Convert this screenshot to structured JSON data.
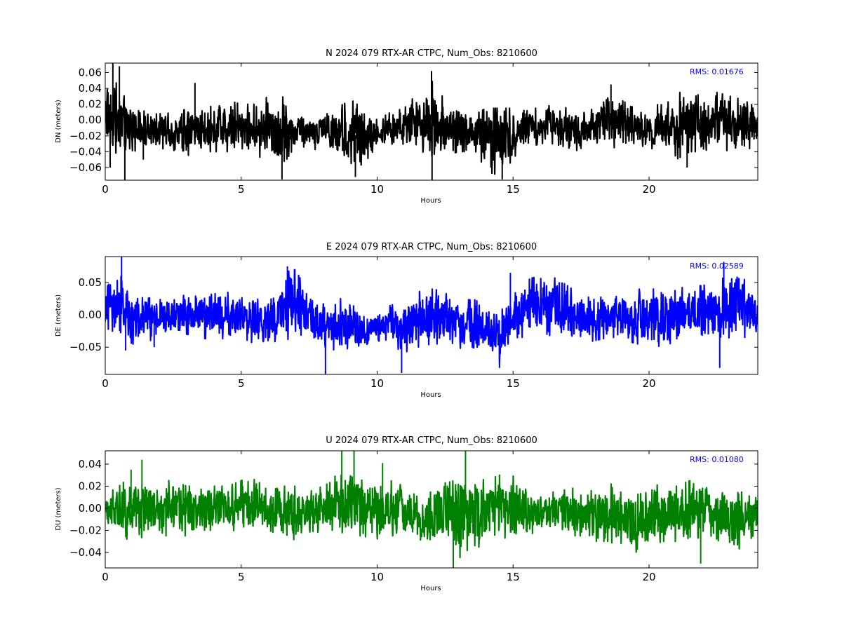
{
  "chart_data": [
    {
      "type": "line",
      "title": "N 2024 079 RTX-AR  CTPC, Num_Obs: 8210600",
      "xlabel": "Hours",
      "ylabel": "DN (meters)",
      "xlim": [
        0,
        24
      ],
      "ylim": [
        -0.076,
        0.072
      ],
      "x_ticks": [
        0,
        5,
        10,
        15,
        20
      ],
      "x_tick_labels": [
        "0",
        "5",
        "10",
        "15",
        "20"
      ],
      "y_ticks": [
        -0.06,
        -0.04,
        -0.02,
        0.0,
        0.02,
        0.04,
        0.06
      ],
      "y_tick_labels": [
        "−0.06",
        "−0.04",
        "−0.02",
        "0.00",
        "0.02",
        "0.04",
        "0.06"
      ],
      "annotation": "RMS:  0.01676",
      "annotation_color": "#0000ff",
      "series_color": "#000000",
      "grid": false,
      "envelope": {
        "hours": [
          0,
          0.5,
          1,
          1.5,
          2,
          2.5,
          3,
          3.5,
          4,
          4.5,
          5,
          5.5,
          6,
          6.5,
          7,
          7.5,
          8,
          8.5,
          9,
          9.5,
          10,
          10.5,
          11,
          11.5,
          12,
          12.5,
          13,
          13.5,
          14,
          14.5,
          15,
          15.5,
          16,
          16.5,
          17,
          17.5,
          18,
          18.5,
          19,
          19.5,
          20,
          20.5,
          21,
          21.5,
          22,
          22.5,
          23,
          23.5,
          24
        ],
        "upper": [
          0.055,
          0.045,
          0.02,
          0.01,
          0.015,
          0.005,
          0.015,
          0.015,
          0.02,
          0.025,
          0.02,
          0.02,
          0.03,
          0.03,
          0.015,
          0.0,
          0.015,
          0.015,
          0.025,
          0.02,
          0.0,
          0.01,
          0.015,
          0.035,
          0.05,
          0.025,
          0.015,
          0.005,
          0.015,
          0.015,
          0.015,
          0.015,
          0.015,
          0.02,
          0.015,
          0.015,
          0.015,
          0.04,
          0.025,
          0.015,
          0.01,
          0.025,
          0.035,
          0.035,
          0.03,
          0.035,
          0.03,
          0.025,
          0.015
        ],
        "lower": [
          -0.03,
          -0.045,
          -0.04,
          -0.035,
          -0.035,
          -0.04,
          -0.045,
          -0.04,
          -0.04,
          -0.04,
          -0.04,
          -0.045,
          -0.05,
          -0.06,
          -0.04,
          -0.035,
          -0.04,
          -0.045,
          -0.065,
          -0.055,
          -0.035,
          -0.03,
          -0.035,
          -0.035,
          -0.05,
          -0.045,
          -0.04,
          -0.04,
          -0.065,
          -0.07,
          -0.05,
          -0.035,
          -0.03,
          -0.03,
          -0.035,
          -0.04,
          -0.035,
          -0.035,
          -0.035,
          -0.035,
          -0.035,
          -0.04,
          -0.05,
          -0.04,
          -0.04,
          -0.035,
          -0.04,
          -0.04,
          -0.03
        ]
      },
      "spikes": [
        [
          0.18,
          -0.06
        ],
        [
          0.28,
          0.072
        ],
        [
          0.52,
          0.068
        ],
        [
          0.72,
          -0.076
        ],
        [
          1.4,
          -0.05
        ],
        [
          3.3,
          0.047
        ],
        [
          6.5,
          -0.075
        ],
        [
          9.2,
          -0.072
        ],
        [
          12.0,
          0.062
        ],
        [
          12.02,
          -0.076
        ],
        [
          14.6,
          -0.075
        ],
        [
          18.6,
          0.045
        ],
        [
          21.4,
          -0.06
        ]
      ]
    },
    {
      "type": "line",
      "title": "E 2024 079 RTX-AR  CTPC, Num_Obs: 8210600",
      "xlabel": "Hours",
      "ylabel": "DE (meters)",
      "xlim": [
        0,
        24
      ],
      "ylim": [
        -0.092,
        0.09
      ],
      "x_ticks": [
        0,
        5,
        10,
        15,
        20
      ],
      "x_tick_labels": [
        "0",
        "5",
        "10",
        "15",
        "20"
      ],
      "y_ticks": [
        -0.05,
        0.0,
        0.05
      ],
      "y_tick_labels": [
        "−0.05",
        "0.00",
        "0.05"
      ],
      "annotation": "RMS:  0.02589",
      "annotation_color": "#0000ff",
      "series_color": "#0000ff",
      "grid": false,
      "envelope": {
        "hours": [
          0,
          0.5,
          1,
          1.5,
          2,
          2.5,
          3,
          3.5,
          4,
          4.5,
          5,
          5.5,
          6,
          6.5,
          7,
          7.5,
          8,
          8.5,
          9,
          9.5,
          10,
          10.5,
          11,
          11.5,
          12,
          12.5,
          13,
          13.5,
          14,
          14.5,
          15,
          15.5,
          16,
          16.5,
          17,
          17.5,
          18,
          18.5,
          19,
          19.5,
          20,
          20.5,
          21,
          21.5,
          22,
          22.5,
          23,
          23.5,
          24
        ],
        "upper": [
          0.06,
          0.065,
          0.03,
          0.025,
          0.03,
          0.03,
          0.03,
          0.035,
          0.04,
          0.035,
          0.03,
          0.035,
          0.02,
          0.065,
          0.07,
          0.03,
          0.02,
          0.025,
          0.025,
          0.015,
          0.005,
          0.015,
          0.02,
          0.035,
          0.045,
          0.04,
          0.02,
          0.025,
          0.015,
          0.01,
          0.03,
          0.055,
          0.06,
          0.07,
          0.045,
          0.03,
          0.025,
          0.03,
          0.04,
          0.04,
          0.04,
          0.04,
          0.04,
          0.045,
          0.045,
          0.06,
          0.07,
          0.06,
          0.03
        ],
        "lower": [
          -0.02,
          -0.03,
          -0.045,
          -0.05,
          -0.035,
          -0.03,
          -0.03,
          -0.035,
          -0.04,
          -0.035,
          -0.035,
          -0.045,
          -0.06,
          -0.04,
          -0.035,
          -0.035,
          -0.05,
          -0.055,
          -0.06,
          -0.055,
          -0.04,
          -0.045,
          -0.06,
          -0.05,
          -0.045,
          -0.045,
          -0.06,
          -0.05,
          -0.06,
          -0.075,
          -0.045,
          -0.03,
          -0.025,
          -0.035,
          -0.04,
          -0.045,
          -0.04,
          -0.035,
          -0.035,
          -0.045,
          -0.045,
          -0.05,
          -0.04,
          -0.035,
          -0.04,
          -0.04,
          -0.035,
          -0.035,
          -0.03
        ]
      },
      "spikes": [
        [
          0.6,
          0.09
        ],
        [
          0.75,
          -0.055
        ],
        [
          1.8,
          -0.05
        ],
        [
          6.7,
          0.075
        ],
        [
          8.1,
          -0.092
        ],
        [
          10.9,
          -0.09
        ],
        [
          14.5,
          -0.082
        ],
        [
          14.9,
          0.065
        ],
        [
          22.6,
          -0.082
        ],
        [
          22.75,
          0.082
        ]
      ]
    },
    {
      "type": "line",
      "title": "U 2024 079 RTX-AR  CTPC, Num_Obs: 8210600",
      "xlabel": "Hours",
      "ylabel": "DU (meters)",
      "xlim": [
        0,
        24
      ],
      "ylim": [
        -0.054,
        0.052
      ],
      "x_ticks": [
        0,
        5,
        10,
        15,
        20
      ],
      "x_tick_labels": [
        "0",
        "5",
        "10",
        "15",
        "20"
      ],
      "y_ticks": [
        -0.04,
        -0.02,
        0.0,
        0.02,
        0.04
      ],
      "y_tick_labels": [
        "−0.04",
        "−0.02",
        "0.00",
        "0.02",
        "0.04"
      ],
      "annotation": "RMS:  0.01080",
      "annotation_color": "#0000ff",
      "series_color": "#008000",
      "grid": false,
      "envelope": {
        "hours": [
          0,
          0.5,
          1,
          1.5,
          2,
          2.5,
          3,
          3.5,
          4,
          4.5,
          5,
          5.5,
          6,
          6.5,
          7,
          7.5,
          8,
          8.5,
          9,
          9.5,
          10,
          10.5,
          11,
          11.5,
          12,
          12.5,
          13,
          13.5,
          14,
          14.5,
          15,
          15.5,
          16,
          16.5,
          17,
          17.5,
          18,
          18.5,
          19,
          19.5,
          20,
          20.5,
          21,
          21.5,
          22,
          22.5,
          23,
          23.5,
          24
        ],
        "upper": [
          0.015,
          0.02,
          0.03,
          0.02,
          0.025,
          0.025,
          0.02,
          0.02,
          0.02,
          0.02,
          0.025,
          0.03,
          0.015,
          0.02,
          0.02,
          0.015,
          0.02,
          0.03,
          0.035,
          0.03,
          0.025,
          0.025,
          0.02,
          0.01,
          0.015,
          0.03,
          0.035,
          0.03,
          0.025,
          0.03,
          0.03,
          0.02,
          0.01,
          0.015,
          0.02,
          0.015,
          0.02,
          0.025,
          0.02,
          0.01,
          0.025,
          0.02,
          0.02,
          0.025,
          0.025,
          0.02,
          0.015,
          0.015,
          0.015
        ],
        "lower": [
          -0.02,
          -0.025,
          -0.03,
          -0.025,
          -0.025,
          -0.025,
          -0.025,
          -0.02,
          -0.02,
          -0.02,
          -0.025,
          -0.02,
          -0.02,
          -0.025,
          -0.03,
          -0.025,
          -0.02,
          -0.02,
          -0.025,
          -0.025,
          -0.03,
          -0.025,
          -0.025,
          -0.03,
          -0.035,
          -0.035,
          -0.045,
          -0.04,
          -0.03,
          -0.025,
          -0.03,
          -0.025,
          -0.02,
          -0.02,
          -0.025,
          -0.025,
          -0.03,
          -0.03,
          -0.035,
          -0.04,
          -0.035,
          -0.03,
          -0.03,
          -0.03,
          -0.025,
          -0.03,
          -0.04,
          -0.035,
          -0.02
        ]
      },
      "spikes": [
        [
          0.95,
          0.035
        ],
        [
          1.35,
          0.044
        ],
        [
          8.7,
          0.052
        ],
        [
          9.15,
          0.052
        ],
        [
          10.2,
          0.041
        ],
        [
          12.8,
          -0.054
        ],
        [
          13.25,
          0.052
        ],
        [
          21.9,
          -0.05
        ]
      ]
    }
  ]
}
